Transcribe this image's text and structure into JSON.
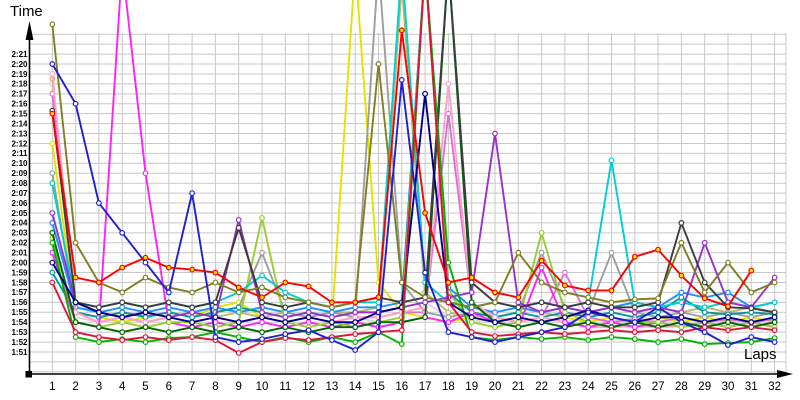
{
  "chart": {
    "grid_color": "#c8c8c8",
    "axis_color": "#000000",
    "background": "#ffffff",
    "marker_default_fill": "#ffffff"
  },
  "chart_data": {
    "type": "line",
    "title": "",
    "xlabel": "Laps",
    "ylabel": "Time",
    "grid": true,
    "legend": "none",
    "x_ticks": [
      1,
      2,
      3,
      4,
      5,
      6,
      7,
      8,
      9,
      10,
      11,
      12,
      13,
      14,
      15,
      16,
      17,
      18,
      19,
      20,
      21,
      22,
      23,
      24,
      25,
      26,
      27,
      28,
      29,
      30,
      31,
      32
    ],
    "y_tick_labels": [
      "1:51",
      "1:52",
      "1:53",
      "1:54",
      "1:55",
      "1:56",
      "1:57",
      "1:58",
      "1:59",
      "2:00",
      "2:01",
      "2:02",
      "2:03",
      "2:04",
      "2:05",
      "2:06",
      "2:07",
      "2:08",
      "2:09",
      "2:10",
      "2:11",
      "2:12",
      "2:13",
      "2:14",
      "2:15",
      "2:16",
      "2:17",
      "2:18",
      "2:19",
      "2:20",
      "2:21"
    ],
    "y_tick_start_seconds": 111,
    "y_tick_step_seconds": 1,
    "ylim_seconds": [
      109,
      144.5
    ],
    "x_range": [
      1,
      32
    ],
    "offscale_spike_seconds": 150,
    "series": [
      {
        "name": "silver",
        "color": "#d8d8d8",
        "values": [
          138,
          114.5,
          114,
          114.5,
          114,
          114.5,
          114,
          114.5,
          114,
          114.5,
          114,
          114.5,
          114,
          114.5,
          114,
          148,
          116,
          114.5,
          114,
          114.5,
          114,
          114.5,
          114,
          114.5,
          114,
          114.5,
          114,
          114.5,
          114,
          114.5,
          114,
          114.5
        ]
      },
      {
        "name": "darkkhaki",
        "color": "#bdb76b",
        "values": [
          138.5,
          116,
          115,
          114.5,
          115,
          114.5,
          115,
          114.5,
          115,
          114.5,
          115,
          114.5,
          115,
          115,
          115.5,
          148,
          117,
          115,
          114.5,
          115,
          115.5,
          115,
          114.5,
          115,
          115.5,
          115,
          115.5,
          115,
          115.5,
          115,
          115.5,
          115
        ]
      },
      {
        "name": "yellow",
        "color": "#e3e300",
        "values": [
          132,
          115,
          114.5,
          114,
          114.5,
          115,
          114.5,
          115.5,
          116,
          114.5,
          114,
          114.5,
          114,
          150,
          118,
          115,
          114.5,
          114,
          114.5,
          114,
          114.5,
          114,
          114.5,
          114,
          114.5,
          114,
          114.5,
          114,
          114.5,
          114,
          114.5,
          114
        ]
      },
      {
        "name": "gray",
        "color": "#9e9e9e",
        "values": [
          129,
          115,
          114.5,
          115,
          114.6,
          115,
          114.5,
          115,
          115.5,
          121,
          115,
          114.5,
          115,
          114.5,
          150,
          118,
          115,
          114.5,
          115,
          114.5,
          115,
          121,
          115.5,
          115,
          121,
          115,
          114.5,
          115,
          114.5,
          115,
          114.5,
          115
        ]
      },
      {
        "name": "skyblue",
        "color": "#1e90ff",
        "values": [
          124,
          115.5,
          115,
          115.5,
          115,
          115.5,
          115,
          115.5,
          115,
          115.5,
          115,
          115.5,
          115,
          115.5,
          115.5,
          116,
          150,
          117.5,
          115.5,
          115,
          115.5,
          115,
          115.5,
          115,
          115.5,
          116,
          115.5,
          117,
          116.5,
          117,
          115.5,
          116
        ]
      },
      {
        "name": "teal",
        "color": "#009999",
        "values": [
          119,
          115,
          114.5,
          115,
          114.5,
          115,
          114.5,
          115,
          115.5,
          115,
          114.5,
          115,
          114.5,
          115,
          115,
          115.5,
          150,
          117,
          115,
          114.5,
          115,
          114.5,
          115,
          114.5,
          115,
          114.5,
          115,
          116.5,
          115,
          114.8,
          115,
          114.8
        ]
      },
      {
        "name": "violet",
        "color": "#da70d6",
        "values": [
          137,
          115,
          114,
          114.5,
          114,
          114.5,
          114,
          114.5,
          114,
          114.5,
          114,
          114.5,
          114,
          114.5,
          114.5,
          115,
          115,
          135,
          116,
          114.5,
          114,
          114.5,
          119,
          114.5,
          114,
          114.3,
          114,
          114.5,
          114,
          114.3,
          114,
          114.3
        ]
      },
      {
        "name": "pink",
        "color": "#ffa0c8",
        "values": [
          139,
          115,
          114,
          114.5,
          114,
          114.5,
          114,
          114.5,
          114,
          114.5,
          114,
          114.5,
          114,
          114.5,
          114.5,
          115,
          115.5,
          138,
          116,
          114.5,
          114,
          114.5,
          114,
          113.5,
          113.5,
          113.6,
          113.5,
          113.6,
          114,
          113.5,
          114,
          113.5
        ]
      },
      {
        "name": "magenta",
        "color": "#ff22ff",
        "values": [
          121,
          114,
          113.5,
          150,
          129,
          114,
          113.5,
          114,
          113.5,
          114,
          113.5,
          114,
          113.5,
          114,
          113.5,
          114,
          114.5,
          114,
          115,
          114,
          113.5,
          119.5,
          114,
          113.5,
          114,
          113.5,
          114,
          113.5,
          114,
          113.5,
          114,
          113.5
        ]
      },
      {
        "name": "yellowgreen",
        "color": "#9acd32",
        "values": [
          122.5,
          114,
          113.5,
          114,
          113.5,
          114,
          114,
          113.5,
          114,
          124.5,
          114,
          113.5,
          114,
          113.5,
          114,
          114.5,
          150,
          117,
          114,
          113.5,
          114,
          123,
          115,
          114,
          113.5,
          114,
          114,
          113.5,
          114,
          113.5,
          114,
          113.5
        ]
      },
      {
        "name": "darkgreen",
        "color": "#006400",
        "values": [
          123,
          114,
          113.5,
          113,
          113.5,
          113,
          113.5,
          113,
          113.5,
          113,
          113.5,
          113,
          113.5,
          113.5,
          114,
          114,
          114.5,
          150,
          116,
          114,
          113.5,
          114,
          113.5,
          114,
          113.5,
          114,
          113.5,
          114,
          113.5,
          114,
          113.5,
          114
        ]
      },
      {
        "name": "cyan",
        "color": "#00ced1",
        "values": [
          128,
          116,
          115.5,
          116,
          115.5,
          116,
          115.5,
          116,
          117,
          118.7,
          117,
          116,
          115.5,
          116,
          116,
          150,
          118,
          116,
          115.5,
          116,
          115.5,
          116,
          115.5,
          116,
          130.3,
          116,
          115.5,
          116,
          115.5,
          116,
          115.5,
          116
        ]
      },
      {
        "name": "purple",
        "color": "#9932cc",
        "values": [
          125,
          116,
          115,
          114.5,
          115,
          114.5,
          115,
          114.5,
          124.3,
          115,
          114.5,
          115,
          114.5,
          115,
          115,
          115.5,
          116,
          116.5,
          117,
          133,
          116,
          115,
          115.5,
          115,
          115.5,
          115,
          115.5,
          115,
          122,
          116,
          115.5,
          118.5
        ]
      },
      {
        "name": "black",
        "color": "#3c3c3c",
        "values": [
          135.3,
          116,
          115.5,
          116,
          115.5,
          116,
          115.5,
          116,
          123.5,
          116,
          115.5,
          116,
          115.5,
          116,
          116.5,
          116,
          116.5,
          150,
          118,
          116,
          115.5,
          116,
          115.5,
          116,
          115.5,
          115.5,
          116,
          124,
          118,
          115.5,
          115.4,
          115
        ]
      },
      {
        "name": "olive",
        "color": "#7f7f24",
        "values": [
          144,
          122,
          118,
          117,
          118.5,
          117.5,
          117,
          118,
          117,
          117.5,
          116.5,
          116,
          115.5,
          116,
          140,
          118,
          116.5,
          116,
          115.5,
          116,
          121,
          118,
          117,
          116.5,
          116,
          116.3,
          116.4,
          122,
          117,
          120,
          117,
          118
        ]
      },
      {
        "name": "green",
        "color": "#00b400",
        "values": [
          122,
          112.5,
          112,
          112.3,
          112,
          112.4,
          112.5,
          113,
          112.5,
          112,
          112.5,
          112,
          112.5,
          112,
          113,
          111.8,
          150,
          120,
          112.5,
          112.2,
          112.5,
          112.3,
          112.5,
          112.2,
          112.5,
          112.3,
          112,
          112.3,
          111.8,
          111.9,
          112,
          112.4
        ]
      },
      {
        "name": "navy",
        "color": "#00008b",
        "values": [
          120,
          116,
          115,
          114.5,
          115,
          114.5,
          114,
          114.5,
          114,
          114.5,
          114,
          114.5,
          114,
          114,
          115,
          115.5,
          137,
          116,
          114.5,
          114,
          114.5,
          114,
          114.5,
          115.2,
          114.5,
          114,
          114.5,
          114.5,
          114,
          114.5,
          114,
          114.5
        ]
      },
      {
        "name": "crimson",
        "color": "#dc143c",
        "values": [
          118,
          113,
          112.5,
          112.2,
          112.5,
          112.2,
          112.5,
          112.2,
          110.9,
          112,
          112.4,
          112.2,
          112.5,
          112.8,
          113,
          113.2,
          150,
          116,
          113,
          112.6,
          112.8,
          113,
          112.8,
          113,
          113.2,
          113,
          113.2,
          113,
          113.5,
          113.2,
          113.5,
          113.2
        ]
      },
      {
        "name": "blue",
        "color": "#2020d0",
        "values": [
          140,
          136,
          126,
          123,
          120,
          117,
          127,
          112.5,
          112,
          112.3,
          112.8,
          113.2,
          112.2,
          111.2,
          113,
          138.4,
          119,
          113,
          112.5,
          112,
          112.5,
          113,
          113.5,
          115,
          114.5,
          114,
          115.5,
          114,
          113,
          111.7,
          112.5,
          112
        ]
      },
      {
        "name": "red",
        "color": "#ff0000",
        "marker_fill": "#ffe800",
        "values": [
          135,
          118.5,
          118,
          119.5,
          120.5,
          119.5,
          119.3,
          119,
          117.5,
          116.5,
          118,
          117.6,
          116,
          116,
          116.5,
          143.4,
          125,
          118,
          118.5,
          117,
          116.5,
          120.2,
          117.7,
          117.2,
          117.2,
          120.6,
          121.3,
          118.7,
          116.4,
          115.6,
          119.2,
          null
        ]
      }
    ]
  }
}
